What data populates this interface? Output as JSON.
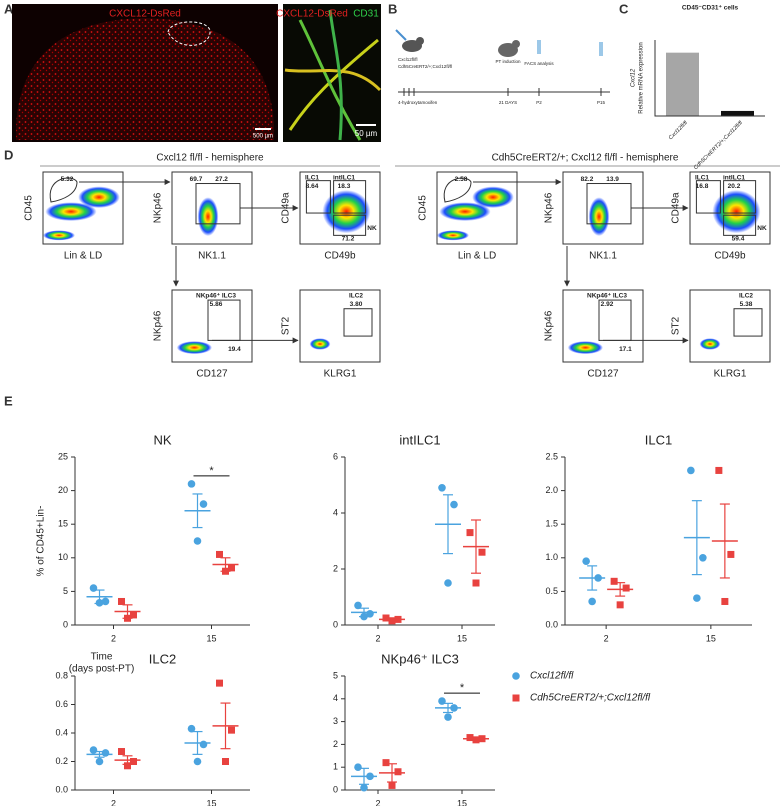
{
  "panels": {
    "A": {
      "label": "A",
      "left_text": "CXCL12-DsRed",
      "right_text_1": "CXCL12-DsRed",
      "right_text_2": "CD31",
      "scale_1": "500 µm",
      "scale_2": "50 µm"
    },
    "B": {
      "label": "B",
      "genotype_1": "Cxcl12fl/fl",
      "genotype_2": "Cdh5CreERT2/+;Cxcl12fl/fl",
      "treatment": "4-hydroxytamoxifen",
      "induction": "PT induction",
      "analysis": "FACS analysis",
      "interval": "21 DAYS",
      "day_1": "P2",
      "day_2": "P15"
    },
    "C": {
      "label": "C"
    },
    "D": {
      "label": "D",
      "groups": [
        {
          "title": "Cxcl12 fl/fl - hemisphere",
          "plots": [
            {
              "x": "Lin & LD",
              "y": "CD45",
              "gates": [
                "5.32"
              ]
            },
            {
              "x": "NK1.1",
              "y": "NKp46",
              "gates": [
                "69.7",
                "27.2"
              ]
            },
            {
              "x": "CD49b",
              "y": "CD49a",
              "gates": [
                "ILC1",
                "intILC1",
                "8.64",
                "18.3",
                "NK",
                "71.2"
              ]
            },
            {
              "x": "CD127",
              "y": "NKp46",
              "gates": [
                "NKp46⁺ ILC3",
                "5.86",
                "19.4"
              ]
            },
            {
              "x": "KLRG1",
              "y": "ST2",
              "gates": [
                "ILC2",
                "3.80"
              ]
            }
          ]
        },
        {
          "title": "Cdh5CreERT2/+; Cxcl12 fl/fl - hemisphere",
          "plots": [
            {
              "x": "Lin & LD",
              "y": "CD45",
              "gates": [
                "2.58"
              ]
            },
            {
              "x": "NK1.1",
              "y": "NKp46",
              "gates": [
                "82.2",
                "13.9"
              ]
            },
            {
              "x": "CD49b",
              "y": "CD49a",
              "gates": [
                "ILC1",
                "intILC1",
                "16.8",
                "20.2",
                "NK",
                "59.4"
              ]
            },
            {
              "x": "CD127",
              "y": "NKp46",
              "gates": [
                "NKp46⁺ ILC3",
                "2.92",
                "17.1"
              ]
            },
            {
              "x": "KLRG1",
              "y": "ST2",
              "gates": [
                "ILC2",
                "5.38"
              ]
            }
          ]
        }
      ]
    },
    "E": {
      "label": "E"
    }
  },
  "chart_data": [
    {
      "type": "bar",
      "title": "CD45⁻CD31⁺ cells",
      "ylabel": [
        "Cxcl12",
        "Relative mRNA expression"
      ],
      "categories": [
        "Cxcl12fl/fl",
        "Cdh5CreERT2/+;Cxcl12fl/fl"
      ],
      "values": [
        1.0,
        0.08
      ],
      "colors": [
        "#a6a6a6",
        "#111111"
      ],
      "ylim": [
        0,
        1.2
      ]
    },
    {
      "type": "dot",
      "title": "NK",
      "ylabel": "% of CD45+Lin-",
      "xlabel": [
        "Time",
        "(days post-PT)"
      ],
      "categories": [
        "2",
        "15"
      ],
      "ylim": [
        0,
        25
      ],
      "yticks": [
        0,
        5,
        10,
        15,
        20,
        25
      ],
      "significance": [
        {
          "category": "15",
          "text": "*"
        }
      ],
      "series": [
        {
          "color": "#4aa3df",
          "values": [
            [
              5.5,
              3.5,
              3.3
            ],
            [
              21,
              18,
              12.5
            ]
          ],
          "means": [
            4.2,
            17
          ],
          "errors": [
            1,
            2.5
          ]
        },
        {
          "color": "#e8423f",
          "values": [
            [
              3.5,
              1.5,
              1.0
            ],
            [
              10.5,
              8.5,
              8
            ]
          ],
          "means": [
            2,
            9
          ],
          "errors": [
            1,
            1
          ]
        }
      ]
    },
    {
      "type": "dot",
      "title": "intILC1",
      "categories": [
        "2",
        "15"
      ],
      "ylim": [
        0,
        6
      ],
      "yticks": [
        0,
        2,
        4,
        6
      ],
      "series": [
        {
          "color": "#4aa3df",
          "values": [
            [
              0.7,
              0.4,
              0.3
            ],
            [
              4.9,
              4.3,
              1.5
            ]
          ],
          "means": [
            0.45,
            3.6
          ],
          "errors": [
            0.15,
            1.05
          ]
        },
        {
          "color": "#e8423f",
          "values": [
            [
              0.25,
              0.2,
              0.15
            ],
            [
              3.3,
              2.6,
              1.5
            ]
          ],
          "means": [
            0.2,
            2.8
          ],
          "errors": [
            0.05,
            0.95
          ]
        }
      ]
    },
    {
      "type": "dot",
      "title": "ILC1",
      "categories": [
        "2",
        "15"
      ],
      "ylim": [
        0,
        2.5
      ],
      "yticks": [
        {
          "value": 0,
          "label": "0.0"
        },
        0.5,
        {
          "value": 1,
          "label": "1.0"
        },
        1.5,
        {
          "value": 2,
          "label": "2.0"
        },
        2.5
      ],
      "series": [
        {
          "color": "#4aa3df",
          "values": [
            [
              0.95,
              0.7,
              0.35
            ],
            [
              2.3,
              1.0,
              0.4
            ]
          ],
          "means": [
            0.7,
            1.3
          ],
          "errors": [
            0.18,
            0.55
          ]
        },
        {
          "color": "#e8423f",
          "values": [
            [
              0.65,
              0.55,
              0.3
            ],
            [
              2.3,
              1.05,
              0.35
            ]
          ],
          "means": [
            0.53,
            1.25
          ],
          "errors": [
            0.1,
            0.55
          ]
        }
      ]
    },
    {
      "type": "dot",
      "title": "ILC2",
      "categories": [
        "2",
        "15"
      ],
      "ylim": [
        0,
        0.8
      ],
      "yticks": [
        {
          "value": 0,
          "label": "0.0"
        },
        0.2,
        0.4,
        0.6,
        0.8
      ],
      "series": [
        {
          "color": "#4aa3df",
          "values": [
            [
              0.28,
              0.26,
              0.2
            ],
            [
              0.43,
              0.32,
              0.2
            ]
          ],
          "means": [
            0.25,
            0.33
          ],
          "errors": [
            0.02,
            0.08
          ]
        },
        {
          "color": "#e8423f",
          "values": [
            [
              0.27,
              0.2,
              0.17
            ],
            [
              0.75,
              0.42,
              0.2
            ]
          ],
          "means": [
            0.21,
            0.45
          ],
          "errors": [
            0.03,
            0.16
          ]
        }
      ]
    },
    {
      "type": "dot",
      "title": "NKp46⁺ ILC3",
      "categories": [
        "2",
        "15"
      ],
      "ylim": [
        0,
        5
      ],
      "yticks": [
        0,
        1,
        2,
        3,
        4,
        5
      ],
      "significance": [
        {
          "category": "15",
          "text": "*"
        }
      ],
      "series": [
        {
          "name": "Cxcl12fl/fl",
          "color": "#4aa3df",
          "values": [
            [
              1.0,
              0.6,
              0.1
            ],
            [
              3.9,
              3.6,
              3.2
            ]
          ],
          "means": [
            0.6,
            3.6
          ],
          "errors": [
            0.35,
            0.2
          ]
        },
        {
          "name": "Cdh5CreERT2/+;Cxcl12fl/fl",
          "color": "#e8423f",
          "values": [
            [
              1.2,
              0.8,
              0.2
            ],
            [
              2.3,
              2.25,
              2.2
            ]
          ],
          "means": [
            0.75,
            2.25
          ],
          "errors": [
            0.4,
            0.05
          ]
        }
      ]
    }
  ]
}
